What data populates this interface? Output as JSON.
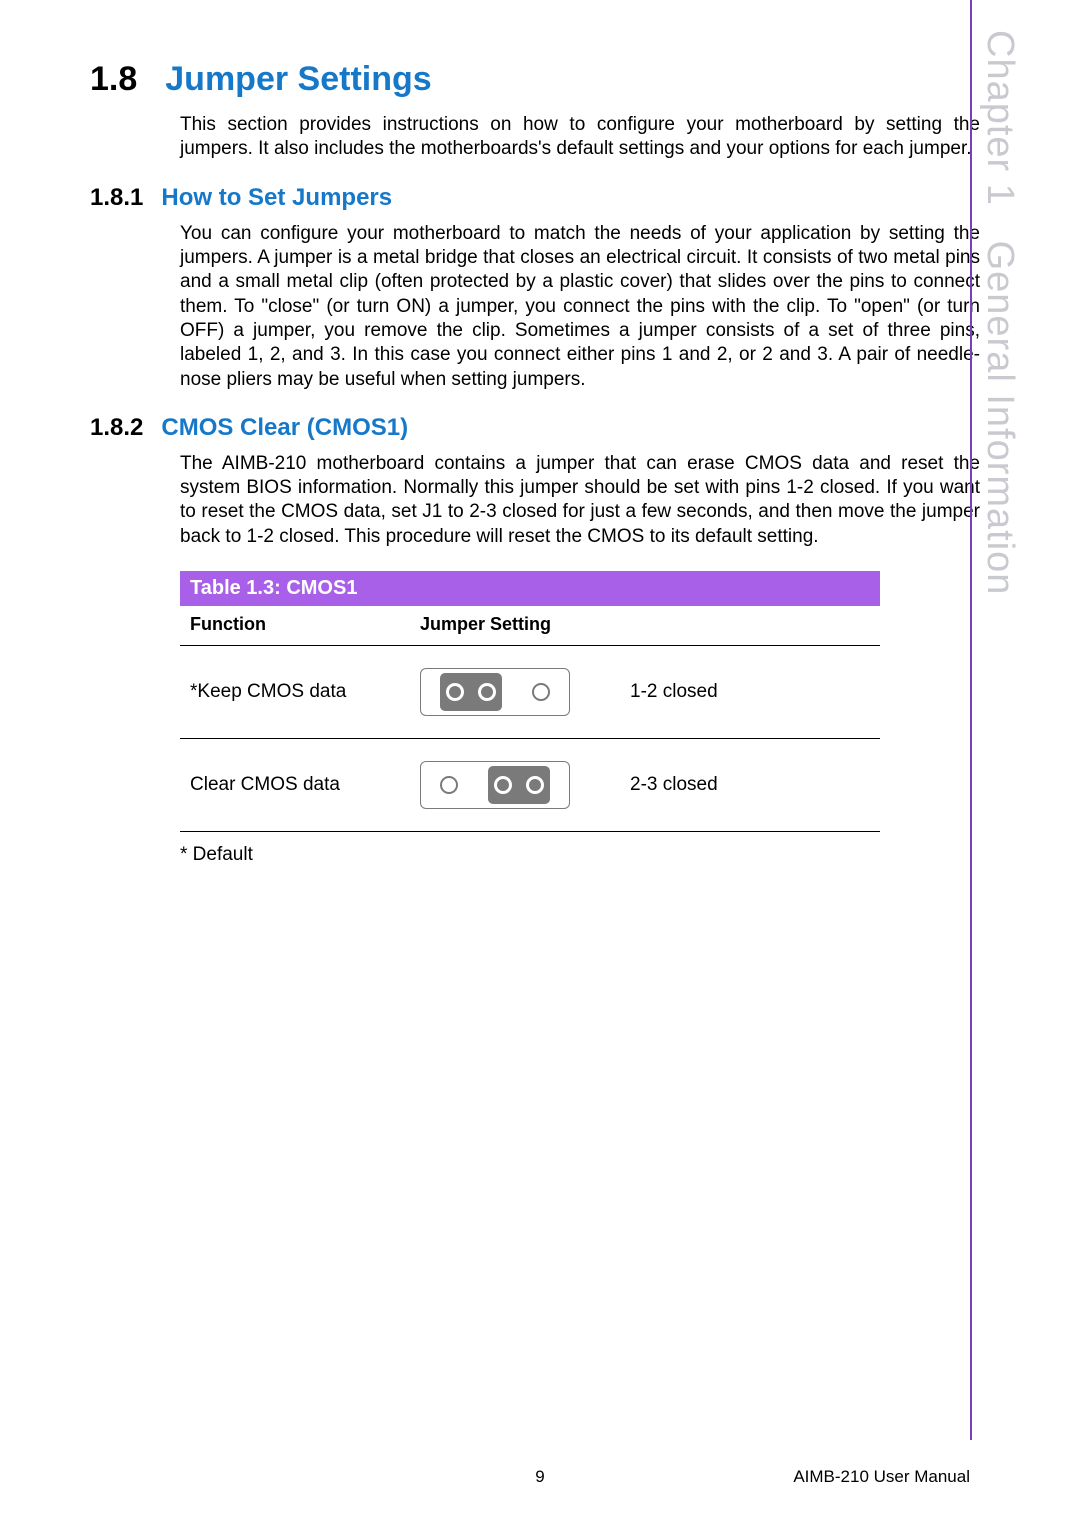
{
  "side_tab": {
    "chapter_label": "Chapter 1",
    "chapter_title": "General Information",
    "border_color": "#7a3fb6",
    "text_color": "#c9c9d0"
  },
  "section": {
    "number": "1.8",
    "title": "Jumper Settings",
    "title_color": "#1678c9",
    "intro": "This section provides instructions on how to configure your motherboard by setting the jumpers. It also includes the motherboards's default settings and your options for each jumper."
  },
  "sub1": {
    "number": "1.8.1",
    "title": "How to Set Jumpers",
    "body": "You can configure your motherboard to match the needs of your application by setting the jumpers. A jumper is a metal bridge that closes an electrical circuit. It consists of two metal pins and a small metal clip (often protected by a plastic cover) that slides over the pins to connect them. To \"close\" (or turn ON) a jumper, you connect the pins with the clip. To \"open\" (or turn OFF) a jumper, you remove the clip. Sometimes a jumper consists of a set of three pins, labeled 1, 2, and 3. In this case you connect either pins 1 and 2, or 2 and 3. A pair of needle-nose pliers may be useful when setting jumpers."
  },
  "sub2": {
    "number": "1.8.2",
    "title": "CMOS Clear (CMOS1)",
    "body": "The AIMB-210 motherboard contains a jumper that can erase CMOS data and reset the system BIOS information. Normally this jumper should be set with pins 1-2 closed. If you want to reset the CMOS data, set J1 to 2-3 closed for just a few seconds, and then move the jumper back to 1-2 closed. This procedure will reset the CMOS to its default setting."
  },
  "table": {
    "title": "Table 1.3: CMOS1",
    "header_bg": "#a960e8",
    "header_fg": "#ffffff",
    "columns": {
      "c1": "Function",
      "c2": "Jumper Setting"
    },
    "rows": [
      {
        "function": "*Keep CMOS data",
        "setting_label": "1-2 closed",
        "closed_pins": "12"
      },
      {
        "function": "Clear CMOS data",
        "setting_label": "2-3 closed",
        "closed_pins": "23"
      }
    ],
    "default_note": "* Default",
    "jumper_colors": {
      "box_border": "#7a7a7a",
      "group_bg": "#7a7a7a",
      "pin_fill": "#7a7a7a",
      "pin_ring": "#ffffff"
    }
  },
  "footer": {
    "page_number": "9",
    "doc_title": "AIMB-210 User Manual"
  }
}
